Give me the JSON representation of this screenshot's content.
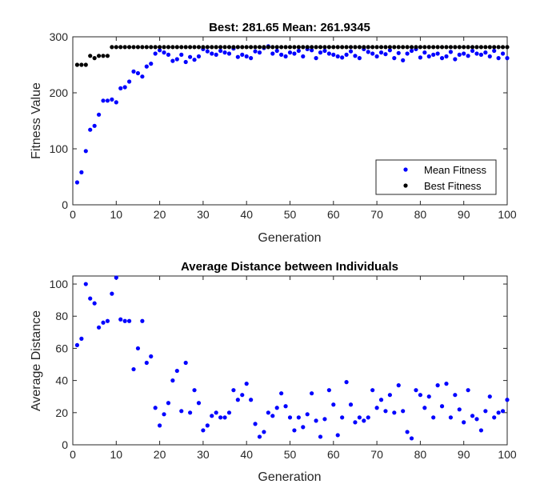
{
  "colors": {
    "mean": "#0000ff",
    "best": "#000000",
    "axis": "#262626"
  },
  "chart_data": [
    {
      "type": "scatter",
      "title": "Best: 281.65  Mean: 261.9345",
      "xlabel": "Generation",
      "ylabel": "Fitness Value",
      "xlim": [
        0,
        100
      ],
      "ylim": [
        0,
        300
      ],
      "xticks": [
        0,
        10,
        20,
        30,
        40,
        50,
        60,
        70,
        80,
        90,
        100
      ],
      "yticks": [
        0,
        100,
        200,
        300
      ],
      "legend": {
        "position": "bottom-right",
        "entries": [
          "Mean Fitness",
          "Best Fitness"
        ]
      },
      "x": [
        1,
        2,
        3,
        4,
        5,
        6,
        7,
        8,
        9,
        10,
        11,
        12,
        13,
        14,
        15,
        16,
        17,
        18,
        19,
        20,
        21,
        22,
        23,
        24,
        25,
        26,
        27,
        28,
        29,
        30,
        31,
        32,
        33,
        34,
        35,
        36,
        37,
        38,
        39,
        40,
        41,
        42,
        43,
        44,
        45,
        46,
        47,
        48,
        49,
        50,
        51,
        52,
        53,
        54,
        55,
        56,
        57,
        58,
        59,
        60,
        61,
        62,
        63,
        64,
        65,
        66,
        67,
        68,
        69,
        70,
        71,
        72,
        73,
        74,
        75,
        76,
        77,
        78,
        79,
        80,
        81,
        82,
        83,
        84,
        85,
        86,
        87,
        88,
        89,
        90,
        91,
        92,
        93,
        94,
        95,
        96,
        97,
        98,
        99,
        100
      ],
      "series": [
        {
          "name": "Mean Fitness",
          "values": [
            40,
            58,
            96,
            134,
            141,
            161,
            186,
            186,
            188,
            183,
            208,
            210,
            220,
            238,
            235,
            229,
            247,
            252,
            270,
            276,
            272,
            268,
            257,
            260,
            268,
            255,
            264,
            259,
            265,
            278,
            274,
            270,
            268,
            275,
            272,
            270,
            279,
            264,
            268,
            265,
            262,
            274,
            272,
            280,
            283,
            270,
            275,
            268,
            265,
            272,
            270,
            275,
            265,
            278,
            276,
            262,
            272,
            275,
            270,
            268,
            265,
            263,
            268,
            274,
            266,
            262,
            278,
            273,
            270,
            265,
            272,
            269,
            276,
            262,
            271,
            258,
            270,
            275,
            278,
            263,
            272,
            265,
            268,
            270,
            262,
            265,
            273,
            260,
            268,
            270,
            266,
            275,
            270,
            268,
            272,
            265,
            275,
            262,
            270,
            262
          ]
        },
        {
          "name": "Best Fitness",
          "values": [
            250,
            250,
            250,
            266,
            262,
            266,
            266,
            266,
            281.65,
            281.65,
            281.65,
            281.65,
            281.65,
            281.65,
            281.65,
            281.65,
            281.65,
            281.65,
            281.65,
            281.65,
            281.65,
            281.65,
            281.65,
            281.65,
            281.65,
            281.65,
            281.65,
            281.65,
            281.65,
            281.65,
            281.65,
            281.65,
            281.65,
            281.65,
            281.65,
            281.65,
            281.65,
            281.65,
            281.65,
            281.65,
            281.65,
            281.65,
            281.65,
            281.65,
            281.65,
            281.65,
            281.65,
            281.65,
            281.65,
            281.65,
            281.65,
            281.65,
            281.65,
            281.65,
            281.65,
            281.65,
            281.65,
            281.65,
            281.65,
            281.65,
            281.65,
            281.65,
            281.65,
            281.65,
            281.65,
            281.65,
            281.65,
            281.65,
            281.65,
            281.65,
            281.65,
            281.65,
            281.65,
            281.65,
            281.65,
            281.65,
            281.65,
            281.65,
            281.65,
            281.65,
            281.65,
            281.65,
            281.65,
            281.65,
            281.65,
            281.65,
            281.65,
            281.65,
            281.65,
            281.65,
            281.65,
            281.65,
            281.65,
            281.65,
            281.65,
            281.65,
            281.65,
            281.65,
            281.65,
            281.65
          ]
        }
      ]
    },
    {
      "type": "scatter",
      "title": "Average Distance between Individuals",
      "xlabel": "Generation",
      "ylabel": "Average Distance",
      "xlim": [
        0,
        100
      ],
      "ylim": [
        0,
        105
      ],
      "xticks": [
        0,
        10,
        20,
        30,
        40,
        50,
        60,
        70,
        80,
        90,
        100
      ],
      "yticks": [
        0,
        20,
        40,
        60,
        80,
        100
      ],
      "x": [
        1,
        2,
        3,
        4,
        5,
        6,
        7,
        8,
        9,
        10,
        11,
        12,
        13,
        14,
        15,
        16,
        17,
        18,
        19,
        20,
        21,
        22,
        23,
        24,
        25,
        26,
        27,
        28,
        29,
        30,
        31,
        32,
        33,
        34,
        35,
        36,
        37,
        38,
        39,
        40,
        41,
        42,
        43,
        44,
        45,
        46,
        47,
        48,
        49,
        50,
        51,
        52,
        53,
        54,
        55,
        56,
        57,
        58,
        59,
        60,
        61,
        62,
        63,
        64,
        65,
        66,
        67,
        68,
        69,
        70,
        71,
        72,
        73,
        74,
        75,
        76,
        77,
        78,
        79,
        80,
        81,
        82,
        83,
        84,
        85,
        86,
        87,
        88,
        89,
        90,
        91,
        92,
        93,
        94,
        95,
        96,
        97,
        98,
        99,
        100
      ],
      "series": [
        {
          "name": "",
          "values": [
            62,
            66,
            100,
            91,
            88,
            73,
            76,
            77,
            94,
            104,
            78,
            77,
            77,
            47,
            60,
            77,
            51,
            55,
            23,
            12,
            19,
            26,
            40,
            46,
            21,
            51,
            20,
            34,
            26,
            9,
            12,
            18,
            20,
            17,
            17,
            20,
            34,
            28,
            31,
            38,
            28,
            13,
            5,
            8,
            20,
            18,
            23,
            32,
            24,
            17,
            9,
            17,
            11,
            19,
            32,
            15,
            5,
            16,
            34,
            25,
            6,
            17,
            39,
            25,
            14,
            17,
            15,
            17,
            34,
            23,
            28,
            21,
            31,
            20,
            37,
            21,
            8,
            4,
            34,
            31,
            23,
            30,
            17,
            37,
            24,
            38,
            17,
            31,
            22,
            14,
            34,
            18,
            16,
            9,
            21,
            30,
            17,
            20,
            21,
            28
          ]
        }
      ]
    }
  ]
}
